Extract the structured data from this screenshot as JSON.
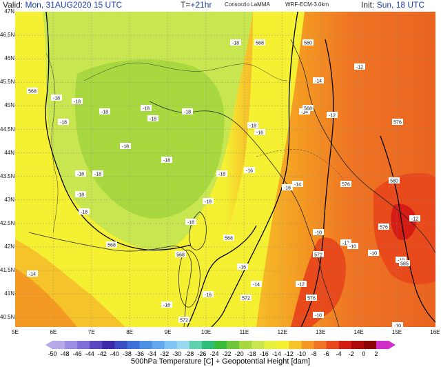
{
  "header": {
    "valid_label": "Valid:",
    "valid_value": "Mon, 31AUG2020  15 UTC",
    "lead_label": "T=",
    "lead_value": "+21hr",
    "source": "Consorzio LaMMA",
    "model": "WRF-ECM-3.0km",
    "init_label": "Init:",
    "init_value": "Sun, 18 UTC"
  },
  "map": {
    "lat_labels": [
      "47N",
      "46.5N",
      "46N",
      "45.5N",
      "45N",
      "44.5N",
      "44N",
      "43.5N",
      "43N",
      "42.5N",
      "42N",
      "41.5N",
      "41N",
      "40.5N"
    ],
    "lon_labels": [
      "5E",
      "6E",
      "7E",
      "8E",
      "9E",
      "10E",
      "11E",
      "12E",
      "13E",
      "14E",
      "15E",
      "16E"
    ],
    "temp_labels": [
      {
        "text": "-18"
      },
      {
        "text": "-18"
      },
      {
        "text": "-18"
      },
      {
        "text": "-18"
      },
      {
        "text": "-18"
      },
      {
        "text": "-18"
      },
      {
        "text": "-18"
      },
      {
        "text": "-18"
      },
      {
        "text": "-18"
      },
      {
        "text": "-18"
      },
      {
        "text": "-18"
      },
      {
        "text": "-18"
      },
      {
        "text": "-18"
      },
      {
        "text": "-18"
      },
      {
        "text": "-18"
      },
      {
        "text": "-18"
      },
      {
        "text": "-18"
      },
      {
        "text": "-18"
      },
      {
        "text": "-16"
      },
      {
        "text": "-16"
      },
      {
        "text": "-16"
      },
      {
        "text": "-16"
      },
      {
        "text": "-16"
      },
      {
        "text": "-16"
      },
      {
        "text": "-14"
      },
      {
        "text": "-14"
      },
      {
        "text": "-14"
      },
      {
        "text": "-14"
      },
      {
        "text": "-14"
      },
      {
        "text": "-12"
      },
      {
        "text": "-12"
      },
      {
        "text": "-12"
      },
      {
        "text": "-12"
      },
      {
        "text": "-12"
      },
      {
        "text": "-10"
      },
      {
        "text": "-10"
      },
      {
        "text": "-10"
      },
      {
        "text": "-10"
      },
      {
        "text": "-10"
      },
      {
        "text": "-10"
      }
    ],
    "height_labels": [
      {
        "text": "568"
      },
      {
        "text": "568"
      },
      {
        "text": "568"
      },
      {
        "text": "568"
      },
      {
        "text": "568"
      },
      {
        "text": "568"
      },
      {
        "text": "572"
      },
      {
        "text": "572"
      },
      {
        "text": "572"
      },
      {
        "text": "576"
      },
      {
        "text": "576"
      },
      {
        "text": "576"
      },
      {
        "text": "576"
      },
      {
        "text": "580"
      },
      {
        "text": "580"
      },
      {
        "text": "585"
      }
    ]
  },
  "colorbar": {
    "ticks": [
      "-50",
      "-48",
      "-46",
      "-44",
      "-42",
      "-40",
      "-38",
      "-36",
      "-34",
      "-32",
      "-30",
      "-28",
      "-26",
      "-24",
      "-22",
      "-20",
      "-18",
      "-16",
      "-14",
      "-12",
      "-10",
      "-8",
      "-6",
      "-4",
      "-2",
      "0",
      "2"
    ],
    "colors": [
      "#b7a8e8",
      "#9b8ee0",
      "#7f6ed6",
      "#5b45c0",
      "#3d2aa8",
      "#3a4fc4",
      "#3f6fd8",
      "#4f8fe4",
      "#63a9ee",
      "#7fc4f4",
      "#9ad9f0",
      "#5fd0b0",
      "#2dbf7a",
      "#3dbb3a",
      "#6fc63a",
      "#a8d840",
      "#c8e650",
      "#e8f040",
      "#f5f032",
      "#f6c42a",
      "#f49a22",
      "#ef7424",
      "#e84a1c",
      "#d41c14",
      "#b00a0a",
      "#8c0606",
      "#d030c8"
    ],
    "title": "500hPa Temperature [C] + Geopotential Height [dam]"
  }
}
